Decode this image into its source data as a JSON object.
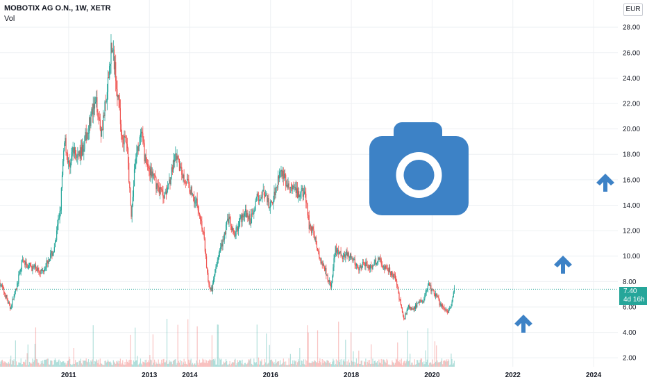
{
  "header": {
    "title": "MOBOTIX AG O.N., 1W, XETR",
    "volume_label": "Vol"
  },
  "currency": "EUR",
  "last_price": {
    "value": "7.40",
    "countdown": "4d 16h"
  },
  "colors": {
    "up": "#26a69a",
    "down": "#ef5350",
    "icon": "#3d82c6",
    "price_line": "#26a69a"
  },
  "icons": [
    "camera-icon",
    "up-arrow-icon",
    "up-arrow-icon",
    "up-arrow-icon"
  ],
  "chart_data": {
    "type": "candlestick",
    "title": "MOBOTIX AG O.N., 1W, XETR",
    "ylim": [
      1.3,
      28.5
    ],
    "xlim": [
      2009.3,
      2024.6
    ],
    "y_ticks": [
      "2.00",
      "4.00",
      "6.00",
      "8.00",
      "10.00",
      "12.00",
      "14.00",
      "16.00",
      "18.00",
      "20.00",
      "22.00",
      "24.00",
      "26.00",
      "28.00"
    ],
    "x_ticks": [
      "2011",
      "2013",
      "2014",
      "2016",
      "2018",
      "2020",
      "2022",
      "2024"
    ],
    "x_tick_values": [
      2011,
      2013,
      2014,
      2016,
      2018,
      2020,
      2022,
      2024
    ],
    "grid": true,
    "last_price": 7.4,
    "price_path": [
      [
        2009.3,
        7.9
      ],
      [
        2009.45,
        6.8
      ],
      [
        2009.55,
        5.9
      ],
      [
        2009.7,
        7.4
      ],
      [
        2009.85,
        9.6
      ],
      [
        2010.0,
        9.2
      ],
      [
        2010.2,
        9.0
      ],
      [
        2010.35,
        8.8
      ],
      [
        2010.5,
        9.8
      ],
      [
        2010.65,
        10.5
      ],
      [
        2010.8,
        14.0
      ],
      [
        2010.9,
        19.5
      ],
      [
        2011.0,
        17.0
      ],
      [
        2011.1,
        18.2
      ],
      [
        2011.25,
        17.8
      ],
      [
        2011.4,
        19.0
      ],
      [
        2011.55,
        21.0
      ],
      [
        2011.7,
        22.0
      ],
      [
        2011.8,
        19.8
      ],
      [
        2011.95,
        22.5
      ],
      [
        2012.05,
        26.5
      ],
      [
        2012.15,
        25.0
      ],
      [
        2012.3,
        19.8
      ],
      [
        2012.45,
        18.5
      ],
      [
        2012.55,
        13.0
      ],
      [
        2012.65,
        17.5
      ],
      [
        2012.8,
        19.5
      ],
      [
        2012.9,
        17.5
      ],
      [
        2013.05,
        16.5
      ],
      [
        2013.2,
        15.5
      ],
      [
        2013.35,
        14.8
      ],
      [
        2013.5,
        16.0
      ],
      [
        2013.65,
        17.8
      ],
      [
        2013.8,
        16.5
      ],
      [
        2013.9,
        16.0
      ],
      [
        2014.05,
        15.0
      ],
      [
        2014.2,
        14.0
      ],
      [
        2014.35,
        11.5
      ],
      [
        2014.45,
        8.0
      ],
      [
        2014.55,
        7.2
      ],
      [
        2014.65,
        9.5
      ],
      [
        2014.8,
        11.0
      ],
      [
        2014.95,
        13.0
      ],
      [
        2015.1,
        11.5
      ],
      [
        2015.2,
        12.5
      ],
      [
        2015.35,
        13.5
      ],
      [
        2015.5,
        12.8
      ],
      [
        2015.65,
        14.5
      ],
      [
        2015.8,
        15.0
      ],
      [
        2016.0,
        13.8
      ],
      [
        2016.1,
        15.0
      ],
      [
        2016.25,
        17.0
      ],
      [
        2016.4,
        15.5
      ],
      [
        2016.55,
        15.2
      ],
      [
        2016.7,
        14.8
      ],
      [
        2016.85,
        15.0
      ],
      [
        2016.95,
        12.5
      ],
      [
        2017.05,
        12.0
      ],
      [
        2017.2,
        10.0
      ],
      [
        2017.35,
        9.0
      ],
      [
        2017.5,
        7.5
      ],
      [
        2017.6,
        10.5
      ],
      [
        2017.75,
        10.0
      ],
      [
        2017.9,
        10.2
      ],
      [
        2018.05,
        9.6
      ],
      [
        2018.2,
        9.0
      ],
      [
        2018.35,
        9.5
      ],
      [
        2018.5,
        9.0
      ],
      [
        2018.65,
        9.8
      ],
      [
        2018.8,
        9.2
      ],
      [
        2018.95,
        8.8
      ],
      [
        2019.1,
        8.2
      ],
      [
        2019.2,
        6.5
      ],
      [
        2019.3,
        5.0
      ],
      [
        2019.4,
        6.0
      ],
      [
        2019.5,
        5.8
      ],
      [
        2019.65,
        6.2
      ],
      [
        2019.8,
        6.6
      ],
      [
        2019.9,
        7.8
      ],
      [
        2020.0,
        7.3
      ],
      [
        2020.1,
        6.9
      ],
      [
        2020.2,
        6.2
      ],
      [
        2020.3,
        6.0
      ],
      [
        2020.4,
        5.6
      ],
      [
        2020.5,
        6.3
      ],
      [
        2020.55,
        7.4
      ]
    ]
  }
}
